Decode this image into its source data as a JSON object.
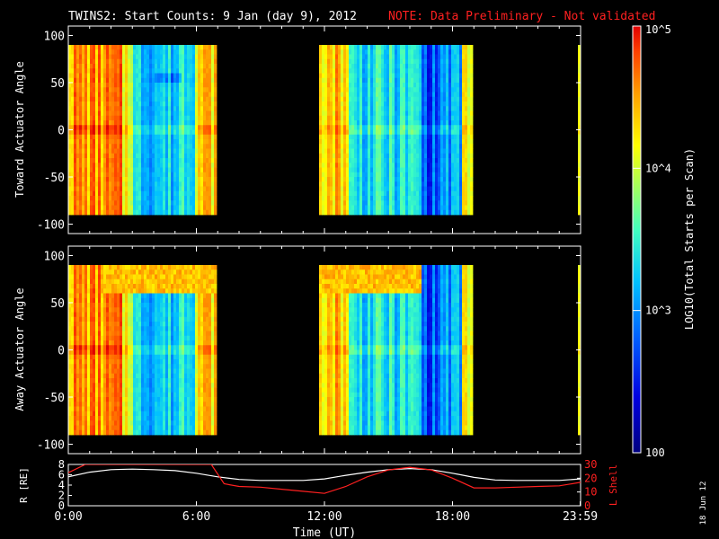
{
  "header": {
    "title": "TWINS2: Start Counts:  9 Jan (day   9), 2012",
    "note": "NOTE: Data Preliminary - Not validated"
  },
  "panels": [
    {
      "ylabel": "Toward Actuator Angle"
    },
    {
      "ylabel": "Away Actuator Angle"
    }
  ],
  "orbit_panel": {
    "ylabel_left": "R [RE]",
    "ylabel_right": "L Shell"
  },
  "xaxis": {
    "label": "Time (UT)"
  },
  "colorbar": {
    "label": "LOG10(Total Starts per Scan)",
    "tick_labels": [
      "10^5",
      "10^4",
      "10^3",
      "100"
    ]
  },
  "date_stamp": "18 Jun 12",
  "colors": {
    "background": "#000000",
    "axes": "#ffffff",
    "note": "#ff2020",
    "r_line": "#ffffff",
    "lshell_line": "#ff2020"
  },
  "chart_data": [
    {
      "type": "heatmap",
      "name": "toward",
      "ylabel": "Toward Actuator Angle",
      "x_range_hours": [
        0,
        24
      ],
      "ylim": [
        -110,
        110
      ],
      "yticks": [
        -100,
        -50,
        0,
        50,
        100
      ],
      "data_y_range": [
        -90,
        90
      ],
      "data_gaps_hours": [
        [
          7.0,
          11.8
        ],
        [
          19.0,
          23.9
        ]
      ],
      "z_scale": "log",
      "zlim": [
        100,
        100000
      ]
    },
    {
      "type": "heatmap",
      "name": "away",
      "ylabel": "Away Actuator Angle",
      "x_range_hours": [
        0,
        24
      ],
      "ylim": [
        -110,
        110
      ],
      "yticks": [
        -100,
        -50,
        0,
        50,
        100
      ],
      "data_y_range": [
        -90,
        90
      ],
      "data_gaps_hours": [
        [
          7.0,
          11.8
        ],
        [
          19.0,
          23.9
        ]
      ],
      "z_scale": "log",
      "zlim": [
        100,
        100000
      ]
    },
    {
      "type": "line",
      "name": "orbit",
      "x_range_hours": [
        0,
        24
      ],
      "xticks": [
        0,
        6,
        12,
        18,
        23.98
      ],
      "xtick_labels": [
        "0:00",
        "6:00",
        "12:00",
        "18:00",
        "23:59"
      ],
      "left_axis": {
        "ylim": [
          0,
          8
        ],
        "yticks": [
          0,
          2,
          4,
          6,
          8
        ]
      },
      "right_axis": {
        "ylim": [
          0,
          30
        ],
        "yticks": [
          0,
          10,
          20,
          30
        ]
      },
      "series": [
        {
          "axis": "left",
          "x": [
            0,
            1,
            2,
            3,
            4,
            5,
            6,
            7,
            8,
            9,
            10,
            11,
            12,
            13,
            14,
            15,
            16,
            17,
            18,
            19,
            20,
            21,
            22,
            23,
            24
          ],
          "y": [
            5.6,
            6.5,
            7.0,
            7.1,
            7.0,
            6.8,
            6.3,
            5.6,
            5.1,
            4.9,
            4.9,
            4.9,
            5.2,
            5.9,
            6.5,
            7.0,
            7.2,
            7.0,
            6.3,
            5.5,
            5.0,
            4.9,
            4.9,
            4.9,
            5.2
          ]
        },
        {
          "axis": "right",
          "x": [
            0,
            0.8,
            6.7,
            7.3,
            8,
            9,
            10,
            11,
            12,
            13,
            14,
            15,
            16,
            17,
            18,
            19,
            20,
            21,
            22,
            23,
            24
          ],
          "y": [
            24,
            30,
            30,
            16,
            14,
            13.5,
            12,
            10.5,
            9,
            14,
            21,
            26,
            28,
            26,
            20,
            13,
            13,
            13.5,
            14,
            14.5,
            17
          ]
        }
      ]
    }
  ]
}
